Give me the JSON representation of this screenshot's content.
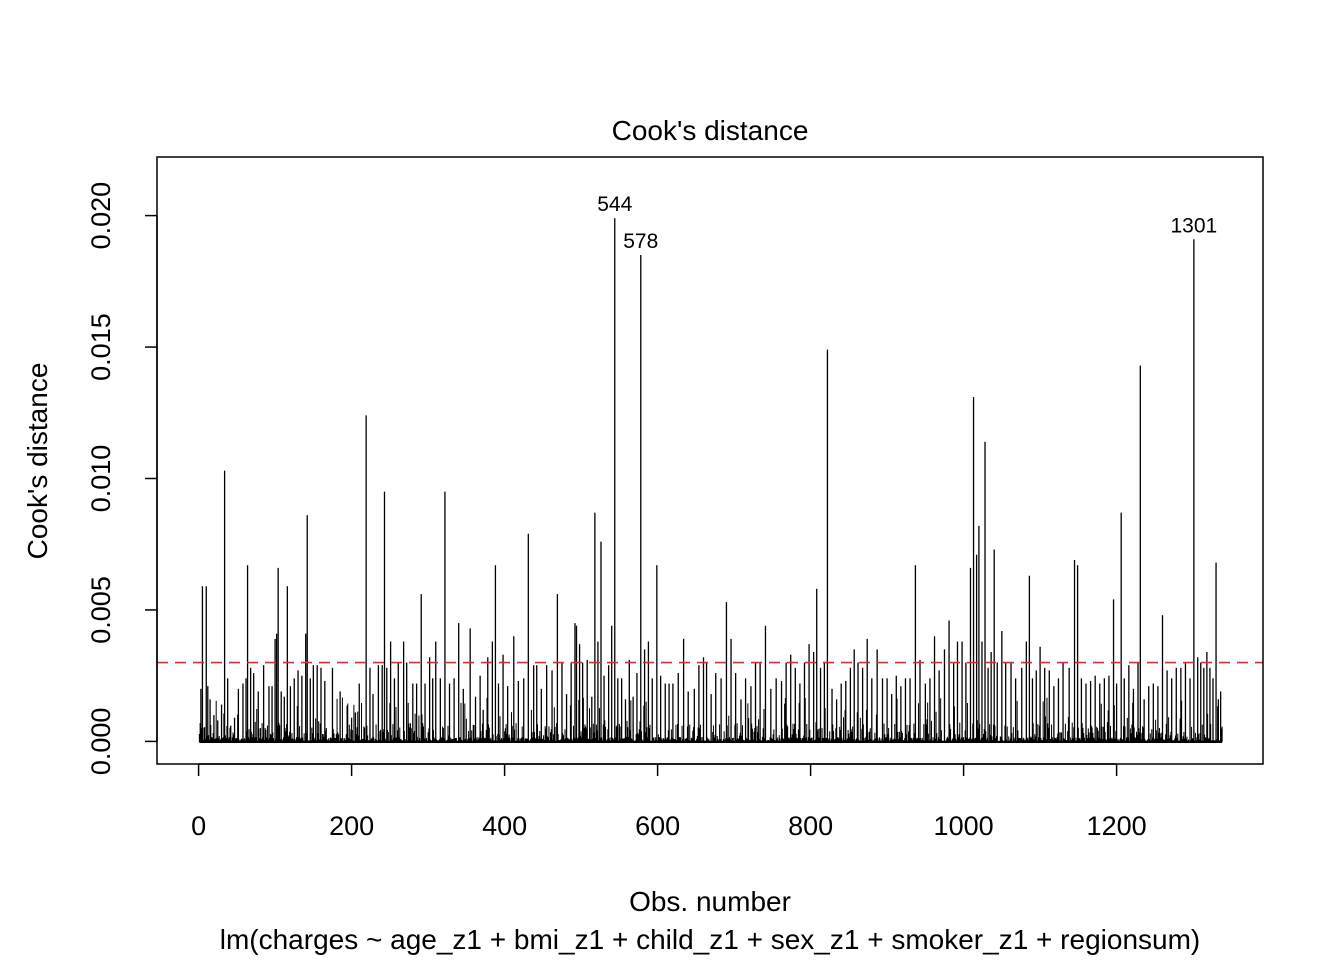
{
  "chart_data": {
    "type": "bar",
    "title": "Cook's distance",
    "xlabel": "Obs. number",
    "subtitle": "lm(charges ~ age_z1 + bmi_z1 + child_z1 + sex_z1 + smoker_z1 + regionsum)",
    "ylabel": "Cook's distance",
    "xlim": [
      1,
      1338
    ],
    "ylim": [
      0,
      0.022
    ],
    "x_ticks": [
      0,
      200,
      400,
      600,
      800,
      1000,
      1200
    ],
    "x_tick_labels": [
      "0",
      "200",
      "400",
      "600",
      "800",
      "1000",
      "1200"
    ],
    "y_ticks": [
      0.0,
      0.005,
      0.01,
      0.015,
      0.02
    ],
    "y_tick_labels": [
      "0.000",
      "0.005",
      "0.010",
      "0.015",
      "0.020"
    ],
    "threshold": {
      "value": 0.003,
      "color": "#e8262b",
      "style": "dashed"
    },
    "n_obs": 1338,
    "baseline_level": 5e-05,
    "spikes": [
      [
        3,
        0.002
      ],
      [
        5,
        0.0059
      ],
      [
        10,
        0.0059
      ],
      [
        12,
        0.0021
      ],
      [
        15,
        0.0016
      ],
      [
        20,
        0.001
      ],
      [
        25,
        0.0008
      ],
      [
        30,
        0.0014
      ],
      [
        34,
        0.0103
      ],
      [
        38,
        0.0024
      ],
      [
        42,
        0.0006
      ],
      [
        47,
        0.0009
      ],
      [
        52,
        0.002
      ],
      [
        58,
        0.0022
      ],
      [
        62,
        0.0024
      ],
      [
        64,
        0.0067
      ],
      [
        68,
        0.0028
      ],
      [
        72,
        0.0026
      ],
      [
        78,
        0.0019
      ],
      [
        85,
        0.0029
      ],
      [
        92,
        0.0021
      ],
      [
        96,
        0.0021
      ],
      [
        100,
        0.0039
      ],
      [
        102,
        0.0041
      ],
      [
        104,
        0.0066
      ],
      [
        108,
        0.0019
      ],
      [
        112,
        0.0017
      ],
      [
        116,
        0.0059
      ],
      [
        120,
        0.0021
      ],
      [
        125,
        0.0024
      ],
      [
        130,
        0.0027
      ],
      [
        135,
        0.0025
      ],
      [
        140,
        0.0041
      ],
      [
        142,
        0.0086
      ],
      [
        146,
        0.0024
      ],
      [
        150,
        0.0029
      ],
      [
        155,
        0.0029
      ],
      [
        160,
        0.0028
      ],
      [
        165,
        0.0023
      ],
      [
        175,
        0.0028
      ],
      [
        185,
        0.0019
      ],
      [
        200,
        0.0009
      ],
      [
        205,
        0.0011
      ],
      [
        210,
        0.0022
      ],
      [
        219,
        0.0124
      ],
      [
        224,
        0.0028
      ],
      [
        228,
        0.0018
      ],
      [
        235,
        0.0029
      ],
      [
        240,
        0.0029
      ],
      [
        243,
        0.0095
      ],
      [
        246,
        0.0028
      ],
      [
        251,
        0.0038
      ],
      [
        256,
        0.0024
      ],
      [
        261,
        0.003
      ],
      [
        268,
        0.0038
      ],
      [
        272,
        0.003
      ],
      [
        280,
        0.0022
      ],
      [
        285,
        0.0022
      ],
      [
        291,
        0.0056
      ],
      [
        296,
        0.0022
      ],
      [
        302,
        0.0032
      ],
      [
        306,
        0.0024
      ],
      [
        310,
        0.0038
      ],
      [
        316,
        0.0024
      ],
      [
        322,
        0.0095
      ],
      [
        328,
        0.0022
      ],
      [
        334,
        0.0024
      ],
      [
        340,
        0.0045
      ],
      [
        346,
        0.002
      ],
      [
        355,
        0.0043
      ],
      [
        362,
        0.0017
      ],
      [
        368,
        0.0025
      ],
      [
        372,
        0.0012
      ],
      [
        378,
        0.0032
      ],
      [
        384,
        0.0038
      ],
      [
        388,
        0.0067
      ],
      [
        392,
        0.0022
      ],
      [
        398,
        0.0033
      ],
      [
        404,
        0.0021
      ],
      [
        412,
        0.004
      ],
      [
        418,
        0.0023
      ],
      [
        425,
        0.0024
      ],
      [
        431,
        0.0079
      ],
      [
        438,
        0.0029
      ],
      [
        442,
        0.0029
      ],
      [
        448,
        0.002
      ],
      [
        455,
        0.0029
      ],
      [
        462,
        0.0027
      ],
      [
        469,
        0.0056
      ],
      [
        475,
        0.003
      ],
      [
        481,
        0.0018
      ],
      [
        487,
        0.003
      ],
      [
        492,
        0.0045
      ],
      [
        494,
        0.0044
      ],
      [
        498,
        0.0037
      ],
      [
        502,
        0.003
      ],
      [
        508,
        0.0031
      ],
      [
        514,
        0.0017
      ],
      [
        518,
        0.0087
      ],
      [
        522,
        0.0038
      ],
      [
        526,
        0.0076
      ],
      [
        530,
        0.0025
      ],
      [
        536,
        0.0029
      ],
      [
        540,
        0.0044
      ],
      [
        544,
        0.0199
      ],
      [
        548,
        0.0024
      ],
      [
        553,
        0.0024
      ],
      [
        558,
        0.0016
      ],
      [
        563,
        0.0031
      ],
      [
        568,
        0.0017
      ],
      [
        573,
        0.0026
      ],
      [
        578,
        0.0185
      ],
      [
        583,
        0.0035
      ],
      [
        588,
        0.0038
      ],
      [
        593,
        0.0024
      ],
      [
        599,
        0.0067
      ],
      [
        604,
        0.0025
      ],
      [
        610,
        0.0022
      ],
      [
        615,
        0.0022
      ],
      [
        620,
        0.0022
      ],
      [
        627,
        0.0026
      ],
      [
        634,
        0.0039
      ],
      [
        640,
        0.0019
      ],
      [
        648,
        0.002
      ],
      [
        654,
        0.0029
      ],
      [
        660,
        0.0032
      ],
      [
        664,
        0.003
      ],
      [
        670,
        0.0018
      ],
      [
        676,
        0.0026
      ],
      [
        683,
        0.0024
      ],
      [
        690,
        0.0053
      ],
      [
        696,
        0.0039
      ],
      [
        702,
        0.0026
      ],
      [
        709,
        0.0016
      ],
      [
        715,
        0.0024
      ],
      [
        722,
        0.0021
      ],
      [
        728,
        0.003
      ],
      [
        734,
        0.003
      ],
      [
        741,
        0.0044
      ],
      [
        748,
        0.002
      ],
      [
        755,
        0.0024
      ],
      [
        762,
        0.0023
      ],
      [
        768,
        0.003
      ],
      [
        774,
        0.0033
      ],
      [
        780,
        0.0028
      ],
      [
        786,
        0.0022
      ],
      [
        792,
        0.003
      ],
      [
        798,
        0.0037
      ],
      [
        804,
        0.0034
      ],
      [
        808,
        0.0058
      ],
      [
        813,
        0.0028
      ],
      [
        818,
        0.003
      ],
      [
        822,
        0.0149
      ],
      [
        828,
        0.002
      ],
      [
        834,
        0.0016
      ],
      [
        840,
        0.0022
      ],
      [
        846,
        0.0023
      ],
      [
        852,
        0.0028
      ],
      [
        857,
        0.0035
      ],
      [
        862,
        0.003
      ],
      [
        868,
        0.0028
      ],
      [
        874,
        0.0039
      ],
      [
        880,
        0.0024
      ],
      [
        887,
        0.0035
      ],
      [
        894,
        0.0024
      ],
      [
        900,
        0.0024
      ],
      [
        906,
        0.0018
      ],
      [
        912,
        0.0025
      ],
      [
        918,
        0.0021
      ],
      [
        924,
        0.0024
      ],
      [
        930,
        0.0024
      ],
      [
        937,
        0.0067
      ],
      [
        943,
        0.0031
      ],
      [
        950,
        0.0022
      ],
      [
        956,
        0.0024
      ],
      [
        962,
        0.004
      ],
      [
        968,
        0.0027
      ],
      [
        975,
        0.0035
      ],
      [
        981,
        0.0046
      ],
      [
        987,
        0.003
      ],
      [
        992,
        0.0038
      ],
      [
        998,
        0.0038
      ],
      [
        1003,
        0.003
      ],
      [
        1009,
        0.0066
      ],
      [
        1013,
        0.0131
      ],
      [
        1017,
        0.0071
      ],
      [
        1020,
        0.0082
      ],
      [
        1024,
        0.0038
      ],
      [
        1028,
        0.0114
      ],
      [
        1032,
        0.0028
      ],
      [
        1036,
        0.0034
      ],
      [
        1040,
        0.0073
      ],
      [
        1044,
        0.003
      ],
      [
        1050,
        0.0042
      ],
      [
        1055,
        0.003
      ],
      [
        1062,
        0.003
      ],
      [
        1068,
        0.0024
      ],
      [
        1076,
        0.0028
      ],
      [
        1082,
        0.0038
      ],
      [
        1086,
        0.0063
      ],
      [
        1090,
        0.0024
      ],
      [
        1095,
        0.0027
      ],
      [
        1100,
        0.0036
      ],
      [
        1106,
        0.0028
      ],
      [
        1112,
        0.0027
      ],
      [
        1118,
        0.0021
      ],
      [
        1124,
        0.0024
      ],
      [
        1130,
        0.003
      ],
      [
        1138,
        0.0028
      ],
      [
        1145,
        0.0069
      ],
      [
        1149,
        0.0067
      ],
      [
        1154,
        0.0024
      ],
      [
        1160,
        0.0022
      ],
      [
        1166,
        0.0023
      ],
      [
        1172,
        0.0025
      ],
      [
        1178,
        0.0022
      ],
      [
        1184,
        0.0024
      ],
      [
        1190,
        0.0025
      ],
      [
        1196,
        0.0054
      ],
      [
        1200,
        0.0022
      ],
      [
        1206,
        0.0087
      ],
      [
        1210,
        0.0024
      ],
      [
        1216,
        0.0029
      ],
      [
        1222,
        0.002
      ],
      [
        1228,
        0.003
      ],
      [
        1231,
        0.0143
      ],
      [
        1236,
        0.0016
      ],
      [
        1242,
        0.0021
      ],
      [
        1248,
        0.0022
      ],
      [
        1254,
        0.0021
      ],
      [
        1260,
        0.0048
      ],
      [
        1266,
        0.0027
      ],
      [
        1272,
        0.0024
      ],
      [
        1278,
        0.0028
      ],
      [
        1284,
        0.0028
      ],
      [
        1290,
        0.003
      ],
      [
        1296,
        0.0024
      ],
      [
        1301,
        0.0191
      ],
      [
        1306,
        0.0032
      ],
      [
        1310,
        0.003
      ],
      [
        1314,
        0.0028
      ],
      [
        1318,
        0.0034
      ],
      [
        1322,
        0.0028
      ],
      [
        1326,
        0.0024
      ],
      [
        1330,
        0.0068
      ],
      [
        1333,
        0.0016
      ],
      [
        1336,
        0.0019
      ]
    ],
    "labels": [
      {
        "obs": 544,
        "text": "544"
      },
      {
        "obs": 578,
        "text": "578"
      },
      {
        "obs": 1301,
        "text": "1301"
      }
    ]
  }
}
